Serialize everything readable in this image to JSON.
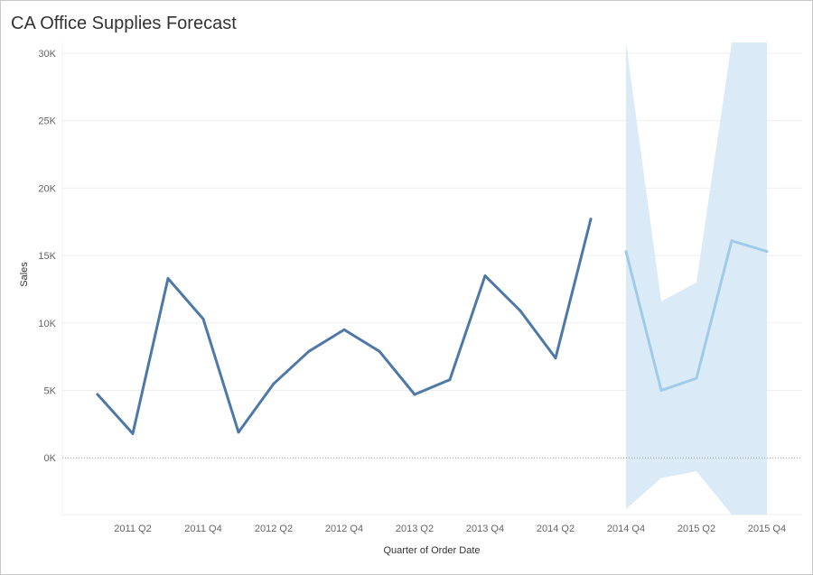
{
  "title": "CA Office Supplies Forecast",
  "chart_data": {
    "type": "line",
    "xlabel": "Quarter of Order Date",
    "ylabel": "Sales",
    "ylim": [
      -4200,
      30800
    ],
    "y_ticks": [
      0,
      5000,
      10000,
      15000,
      20000,
      25000,
      30000
    ],
    "y_tick_labels": [
      "0K",
      "5K",
      "10K",
      "15K",
      "20K",
      "25K",
      "30K"
    ],
    "x_categories": [
      "2011 Q1",
      "2011 Q2",
      "2011 Q3",
      "2011 Q4",
      "2012 Q1",
      "2012 Q2",
      "2012 Q3",
      "2012 Q4",
      "2013 Q1",
      "2013 Q2",
      "2013 Q3",
      "2013 Q4",
      "2014 Q1",
      "2014 Q2",
      "2014 Q3",
      "2014 Q4",
      "2015 Q1",
      "2015 Q2",
      "2015 Q3",
      "2015 Q4"
    ],
    "x_tick_labels": [
      "2011 Q2",
      "2011 Q4",
      "2012 Q2",
      "2012 Q4",
      "2013 Q2",
      "2013 Q4",
      "2014 Q2",
      "2014 Q4",
      "2015 Q2",
      "2015 Q4"
    ],
    "grid": true,
    "series": [
      {
        "role": "actual",
        "color": "#4e79a7",
        "x": [
          "2011 Q1",
          "2011 Q2",
          "2011 Q3",
          "2011 Q4",
          "2012 Q1",
          "2012 Q2",
          "2012 Q3",
          "2012 Q4",
          "2013 Q1",
          "2013 Q2",
          "2013 Q3",
          "2013 Q4",
          "2014 Q1",
          "2014 Q2",
          "2014 Q3"
        ],
        "values": [
          4700,
          1800,
          13300,
          10300,
          1900,
          5500,
          7900,
          9500,
          7900,
          4700,
          5800,
          13500,
          10900,
          7400,
          17700
        ]
      },
      {
        "role": "forecast",
        "color": "#a0cbe8",
        "x": [
          "2014 Q4",
          "2015 Q1",
          "2015 Q2",
          "2015 Q3",
          "2015 Q4"
        ],
        "values": [
          15300,
          5000,
          5900,
          16100,
          15300
        ]
      }
    ],
    "prediction_band": {
      "color": "#dbeaf7",
      "x": [
        "2014 Q4",
        "2015 Q1",
        "2015 Q2",
        "2015 Q3",
        "2015 Q4"
      ],
      "upper": [
        30800,
        11600,
        13000,
        30800,
        30800
      ],
      "lower": [
        -3800,
        -1500,
        -1000,
        -4200,
        -4200
      ]
    }
  }
}
